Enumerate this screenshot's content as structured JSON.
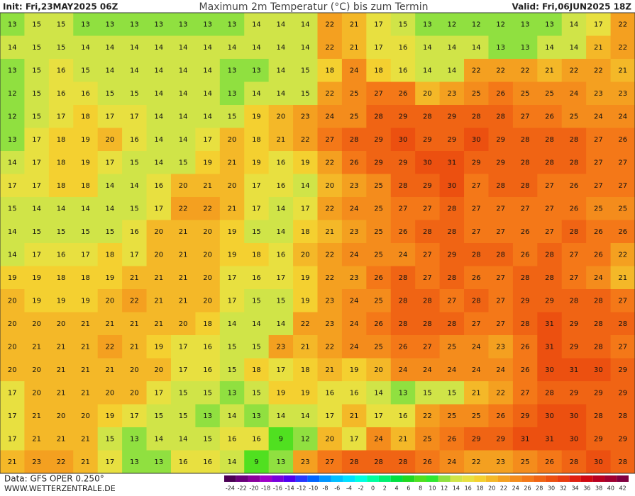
{
  "header": {
    "init": "Init: Fri,23MAY2025 06Z",
    "title": "Maximum 2m Temperatur (°C) bis zum Termin",
    "valid": "Valid: Fri,06JUN2025 18Z"
  },
  "footer": {
    "data": "Data: GFS OPER 0.250°",
    "website": "WWW.WETTERZENTRALE.DE"
  },
  "legend": {
    "labels": [
      -24,
      -22,
      -20,
      -18,
      -16,
      -14,
      -12,
      -10,
      -8,
      -6,
      -4,
      -2,
      0,
      2,
      4,
      6,
      8,
      10,
      12,
      14,
      16,
      18,
      20,
      22,
      24,
      26,
      28,
      30,
      32,
      34,
      36,
      38,
      40,
      42
    ],
    "colors": [
      "#4b0055",
      "#6a007a",
      "#8a009c",
      "#a000c8",
      "#7800dc",
      "#5000f0",
      "#2838ff",
      "#0064ff",
      "#0096ff",
      "#00c0ff",
      "#00e0ff",
      "#00ffe0",
      "#00ffa0",
      "#00f070",
      "#00e040",
      "#20d820",
      "#50e020",
      "#30e830",
      "#90e040",
      "#d0e448",
      "#e8e040",
      "#f4d030",
      "#f4b828",
      "#f4a020",
      "#f48c1c",
      "#f47818",
      "#f06414",
      "#ec5010",
      "#e83c10",
      "#e02010",
      "#d00810",
      "#b80020",
      "#a00030",
      "#800040"
    ]
  },
  "grid": {
    "rows": [
      [
        13,
        15,
        15,
        13,
        13,
        13,
        13,
        13,
        13,
        13,
        14,
        14,
        14,
        22,
        21,
        17,
        15,
        13,
        12,
        12,
        12,
        13,
        13,
        14,
        17,
        22
      ],
      [
        14,
        15,
        15,
        14,
        14,
        14,
        14,
        14,
        14,
        14,
        14,
        14,
        14,
        22,
        21,
        17,
        16,
        14,
        14,
        14,
        13,
        13,
        14,
        14,
        21,
        22
      ],
      [
        13,
        15,
        16,
        15,
        14,
        14,
        14,
        14,
        14,
        13,
        13,
        14,
        15,
        18,
        24,
        18,
        16,
        14,
        14,
        22,
        22,
        22,
        21,
        22,
        22,
        21
      ],
      [
        12,
        15,
        16,
        16,
        15,
        15,
        14,
        14,
        14,
        13,
        14,
        14,
        15,
        22,
        25,
        27,
        26,
        20,
        23,
        25,
        26,
        25,
        25,
        24,
        23,
        23
      ],
      [
        12,
        15,
        17,
        18,
        17,
        17,
        14,
        14,
        14,
        15,
        19,
        20,
        23,
        24,
        25,
        28,
        29,
        28,
        29,
        28,
        28,
        27,
        26,
        25,
        24,
        24
      ],
      [
        13,
        17,
        18,
        19,
        20,
        16,
        14,
        14,
        17,
        20,
        18,
        21,
        22,
        27,
        28,
        29,
        30,
        29,
        29,
        30,
        29,
        28,
        28,
        28,
        27,
        26
      ],
      [
        14,
        17,
        18,
        19,
        17,
        15,
        14,
        15,
        19,
        21,
        19,
        16,
        19,
        22,
        26,
        29,
        29,
        30,
        31,
        29,
        29,
        28,
        28,
        28,
        27,
        27
      ],
      [
        17,
        17,
        18,
        18,
        14,
        14,
        16,
        20,
        21,
        20,
        17,
        16,
        14,
        20,
        23,
        25,
        28,
        29,
        30,
        27,
        28,
        28,
        27,
        26,
        27,
        27
      ],
      [
        15,
        14,
        14,
        14,
        14,
        15,
        17,
        22,
        22,
        21,
        17,
        14,
        17,
        22,
        24,
        25,
        27,
        27,
        28,
        27,
        27,
        27,
        27,
        26,
        25,
        25
      ],
      [
        14,
        15,
        15,
        15,
        15,
        16,
        20,
        21,
        20,
        19,
        15,
        14,
        18,
        21,
        23,
        25,
        26,
        28,
        28,
        27,
        27,
        26,
        27,
        28,
        26,
        26
      ],
      [
        14,
        17,
        16,
        17,
        18,
        17,
        20,
        21,
        20,
        19,
        18,
        16,
        20,
        22,
        24,
        25,
        24,
        27,
        29,
        28,
        28,
        26,
        28,
        27,
        26,
        22
      ],
      [
        19,
        19,
        18,
        18,
        19,
        21,
        21,
        21,
        20,
        17,
        16,
        17,
        19,
        22,
        23,
        26,
        28,
        27,
        28,
        26,
        27,
        28,
        28,
        27,
        24,
        21
      ],
      [
        20,
        19,
        19,
        19,
        20,
        22,
        21,
        21,
        20,
        17,
        15,
        15,
        19,
        23,
        24,
        25,
        28,
        28,
        27,
        28,
        27,
        29,
        29,
        28,
        28,
        27
      ],
      [
        20,
        20,
        20,
        21,
        21,
        21,
        21,
        20,
        18,
        14,
        14,
        14,
        22,
        23,
        24,
        26,
        28,
        28,
        28,
        27,
        27,
        28,
        31,
        29,
        28,
        28
      ],
      [
        20,
        21,
        21,
        21,
        22,
        21,
        19,
        17,
        16,
        15,
        15,
        23,
        21,
        22,
        24,
        25,
        26,
        27,
        25,
        24,
        23,
        26,
        31,
        29,
        28,
        27
      ],
      [
        20,
        20,
        21,
        21,
        21,
        20,
        20,
        17,
        16,
        15,
        18,
        17,
        18,
        21,
        19,
        20,
        24,
        24,
        24,
        24,
        24,
        26,
        30,
        31,
        30,
        29
      ],
      [
        17,
        20,
        21,
        21,
        20,
        20,
        17,
        15,
        15,
        13,
        15,
        19,
        19,
        16,
        16,
        14,
        13,
        15,
        15,
        21,
        22,
        27,
        28,
        29,
        29,
        29
      ],
      [
        17,
        21,
        20,
        20,
        19,
        17,
        15,
        15,
        13,
        14,
        13,
        14,
        14,
        17,
        21,
        17,
        16,
        22,
        25,
        25,
        26,
        29,
        30,
        30,
        28,
        28
      ],
      [
        17,
        21,
        21,
        21,
        15,
        13,
        14,
        14,
        15,
        16,
        16,
        9,
        12,
        20,
        17,
        24,
        21,
        25,
        26,
        29,
        29,
        31,
        31,
        30,
        29,
        29
      ],
      [
        21,
        23,
        22,
        21,
        17,
        13,
        13,
        16,
        16,
        14,
        9,
        13,
        23,
        27,
        28,
        28,
        28,
        26,
        24,
        22,
        23,
        25,
        26,
        28,
        30,
        28
      ]
    ]
  }
}
